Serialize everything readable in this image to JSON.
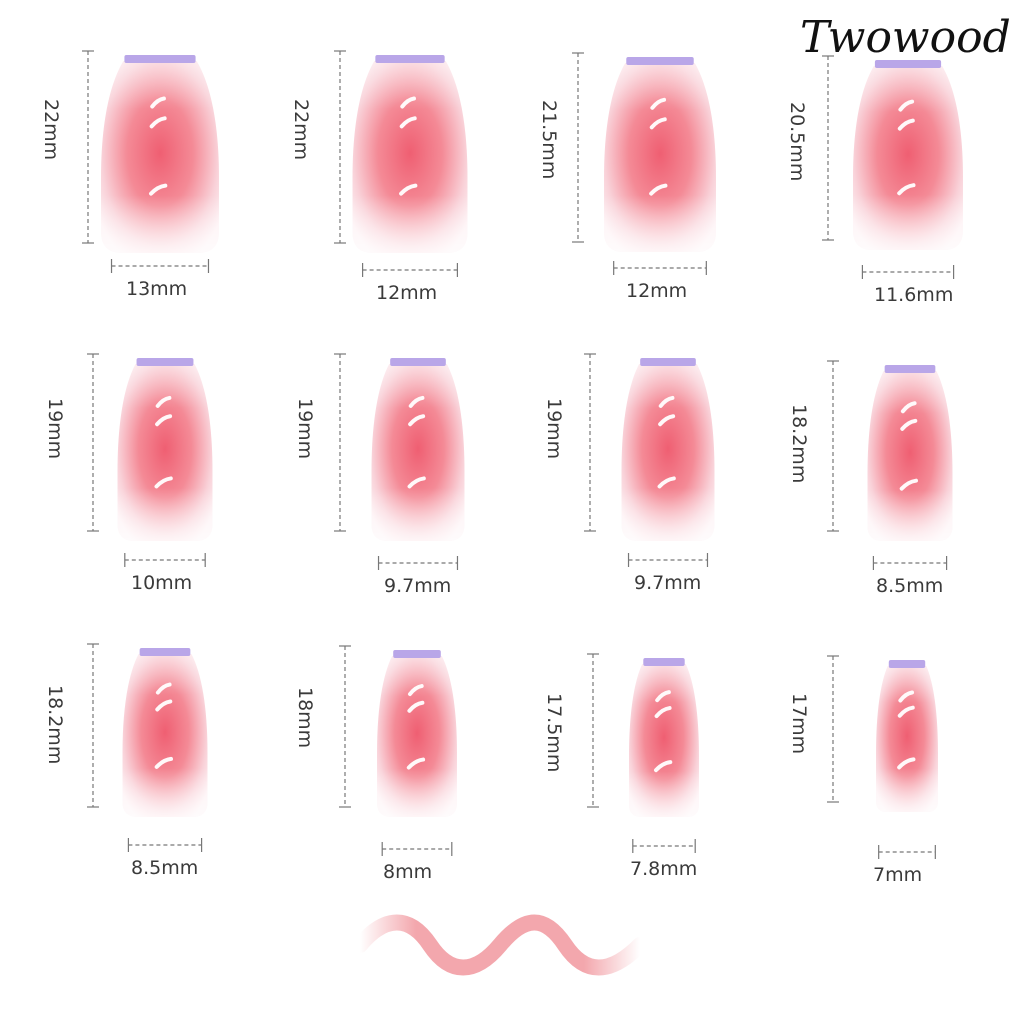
{
  "brand": {
    "logo_text": "Twowood"
  },
  "colors": {
    "nail_tip": "#b9a6e8",
    "nail_pink": "#f06a7b",
    "nail_base": "#fbe9ee",
    "dim_line": "#777777",
    "wave": "#f3a7ad"
  },
  "nails": [
    {
      "length": "22mm",
      "width": "13mm"
    },
    {
      "length": "22mm",
      "width": "12mm"
    },
    {
      "length": "21.5mm",
      "width": "12mm"
    },
    {
      "length": "20.5mm",
      "width": "11.6mm"
    },
    {
      "length": "19mm",
      "width": "10mm"
    },
    {
      "length": "19mm",
      "width": "9.7mm"
    },
    {
      "length": "19mm",
      "width": "9.7mm"
    },
    {
      "length": "18.2mm",
      "width": "8.5mm"
    },
    {
      "length": "18.2mm",
      "width": "8.5mm"
    },
    {
      "length": "18mm",
      "width": "8mm"
    },
    {
      "length": "17.5mm",
      "width": "7.8mm"
    },
    {
      "length": "17mm",
      "width": "7mm"
    }
  ]
}
